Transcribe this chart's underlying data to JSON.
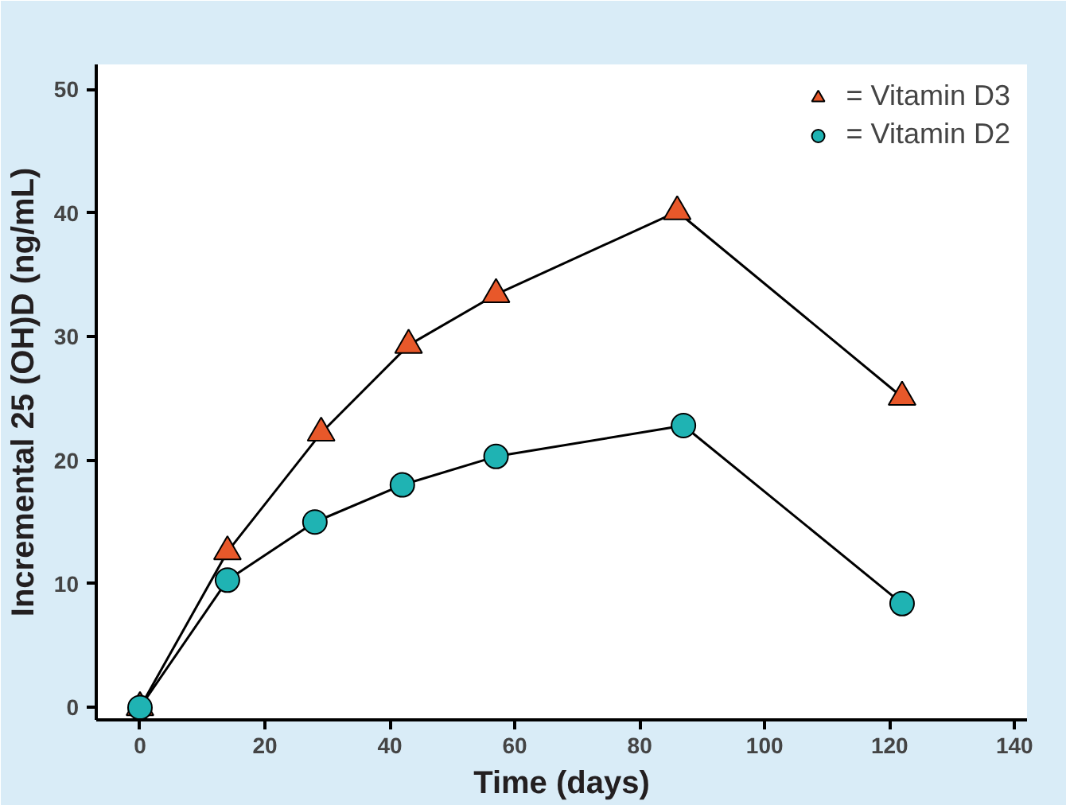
{
  "chart_data": {
    "type": "line",
    "xlabel": "Time (days)",
    "ylabel": "Incremental 25 (OH)D (ng/mL)",
    "xlim": [
      -7,
      142
    ],
    "ylim": [
      -1,
      52
    ],
    "xticks": [
      0,
      20,
      40,
      60,
      80,
      100,
      120,
      140
    ],
    "yticks": [
      0,
      10,
      20,
      30,
      40,
      50
    ],
    "grid": false,
    "legend": "top right",
    "line_style": "solid",
    "series": [
      {
        "name": "= Vitamin D3",
        "color": "#e8582a",
        "marker": "triangle",
        "x": [
          0,
          14,
          29,
          43,
          57,
          86,
          122
        ],
        "values": [
          0,
          12.6,
          22.2,
          29.3,
          33.4,
          40.1,
          25.1
        ]
      },
      {
        "name": "= Vitamin D2",
        "color": "#1fb3b3",
        "marker": "circle",
        "x": [
          0,
          14,
          28,
          42,
          57,
          87,
          122
        ],
        "values": [
          0,
          10.3,
          15.0,
          18.0,
          20.3,
          22.8,
          8.4
        ]
      }
    ]
  }
}
